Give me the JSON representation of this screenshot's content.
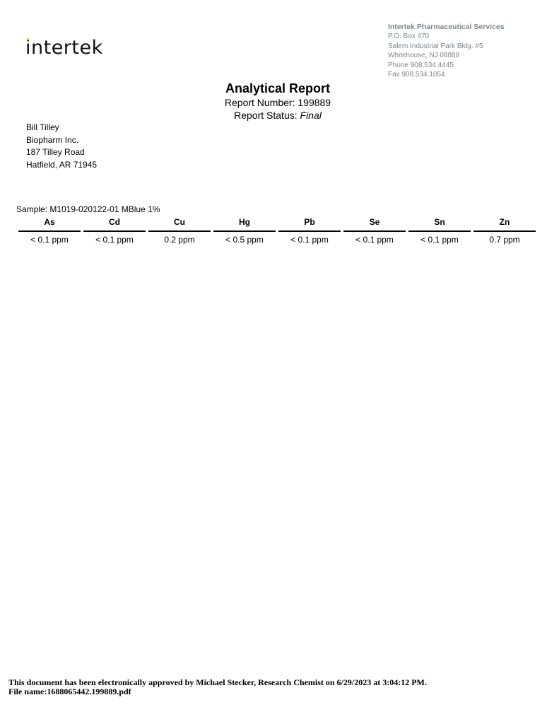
{
  "header": {
    "logo_text": "intertek",
    "company": "Intertek Pharmaceutical Services",
    "address": [
      "P.O. Box 470",
      "Salem Industrial Park Bldg. #5",
      "Whitehouse, NJ 08888",
      "Phone 908.534.4445",
      "Fax 908.534.1054"
    ]
  },
  "report": {
    "title": "Analytical Report",
    "number_label": "Report Number: 199889",
    "status_label": "Report Status: ",
    "status_value": "Final"
  },
  "client": [
    "Bill Tilley",
    "Biopharm Inc.",
    "187 Tilley Road",
    "Hatfield, AR 71945"
  ],
  "sample": {
    "label": "Sample: M1019-020122-01 MBlue 1%",
    "columns": [
      "As",
      "Cd",
      "Cu",
      "Hg",
      "Pb",
      "Se",
      "Sn",
      "Zn"
    ],
    "values": [
      "< 0.1 ppm",
      "< 0.1 ppm",
      "0.2 ppm",
      "< 0.5 ppm",
      "< 0.1 ppm",
      "< 0.1 ppm",
      "< 0.1 ppm",
      "0.7 ppm"
    ]
  },
  "footer": {
    "approval": "This document has been electronically approved by Michael Stecker, Research Chemist on 6/29/2023 at 3:04:12 PM.",
    "filename": "File name:1688065442.199889.pdf"
  }
}
